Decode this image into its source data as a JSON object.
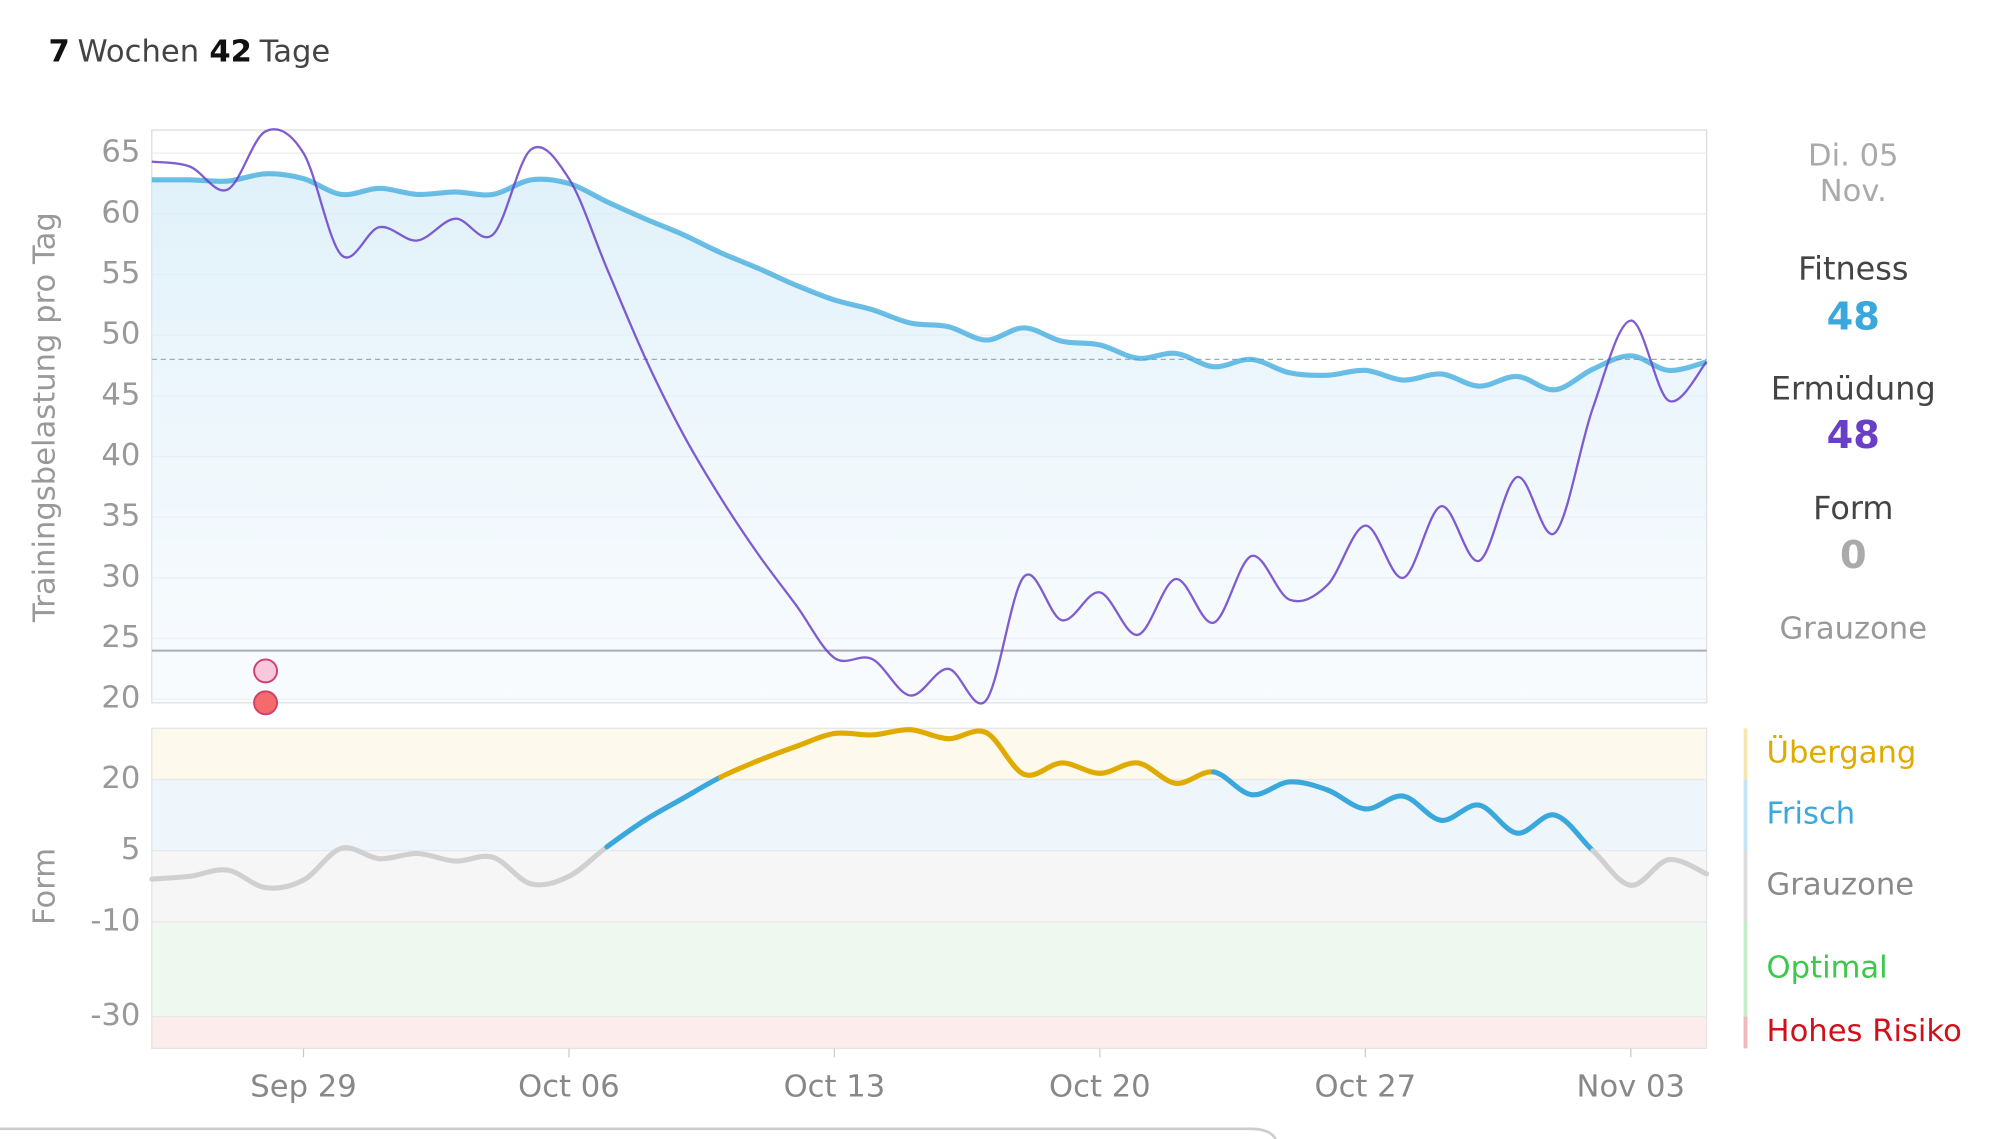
{
  "header": {
    "weeks": 7,
    "weeks_label": "Wochen",
    "days": 42,
    "days_label": "Tage"
  },
  "summary": {
    "date": [
      "Di. 05",
      "Nov."
    ],
    "fitness": 48,
    "fatigue": 48,
    "form": 0,
    "zone": "Grauzone"
  },
  "chart_data": [
    {
      "type": "line",
      "y_label": "Trainingsbelastung pro Tag",
      "x": [
        "Sep 25",
        "Sep 26",
        "Sep 27",
        "Sep 28",
        "Sep 29",
        "Sep 30",
        "Oct 01",
        "Oct 02",
        "Oct 03",
        "Oct 04",
        "Oct 05",
        "Oct 06",
        "Oct 07",
        "Oct 08",
        "Oct 09",
        "Oct 10",
        "Oct 11",
        "Oct 12",
        "Oct 13",
        "Oct 14",
        "Oct 15",
        "Oct 16",
        "Oct 17",
        "Oct 18",
        "Oct 19",
        "Oct 20",
        "Oct 21",
        "Oct 22",
        "Oct 23",
        "Oct 24",
        "Oct 25",
        "Oct 26",
        "Oct 27",
        "Oct 28",
        "Oct 29",
        "Oct 30",
        "Oct 31",
        "Nov 01",
        "Nov 02",
        "Nov 03",
        "Nov 04",
        "Nov 05"
      ],
      "ylim": [
        19.7,
        66.9
      ],
      "yticks": [
        20,
        25,
        30,
        35,
        40,
        45,
        50,
        55,
        60,
        65
      ],
      "grid": true,
      "series": [
        {
          "name": "Fitness",
          "color": "#3aa8dc",
          "fill": true,
          "values": [
            62.8,
            62.8,
            62.7,
            63.3,
            62.9,
            61.6,
            62.1,
            61.6,
            61.8,
            61.6,
            62.8,
            62.5,
            61.0,
            59.6,
            58.3,
            56.8,
            55.5,
            54.1,
            52.9,
            52.1,
            51.0,
            50.7,
            49.6,
            50.6,
            49.5,
            49.2,
            48.1,
            48.5,
            47.4,
            48.0,
            46.9,
            46.7,
            47.1,
            46.3,
            46.8,
            45.8,
            46.6,
            45.5,
            47.2,
            48.3,
            47.1,
            47.8
          ]
        },
        {
          "name": "Ermüdung",
          "color": "#6a3fc8",
          "fill": false,
          "values": [
            64.3,
            63.9,
            62.0,
            66.8,
            65.0,
            56.6,
            58.9,
            57.8,
            59.6,
            58.3,
            65.3,
            62.9,
            55.5,
            48.2,
            41.9,
            36.6,
            31.9,
            27.7,
            23.4,
            23.3,
            20.3,
            22.5,
            19.9,
            30.1,
            26.5,
            28.8,
            25.3,
            29.9,
            26.3,
            31.8,
            28.2,
            29.4,
            34.3,
            30.0,
            35.9,
            31.4,
            38.3,
            33.7,
            44.0,
            51.2,
            44.6,
            47.8
          ]
        }
      ],
      "hlines": [
        {
          "value": 48,
          "style": "dashed"
        },
        {
          "value": 24,
          "style": "solid"
        }
      ],
      "markers": [
        {
          "x": "Sep 28",
          "color": "#f7c8dc"
        },
        {
          "x": "Sep 28",
          "color": "#f56b6b"
        }
      ]
    },
    {
      "type": "zone-line",
      "y_label": "Form",
      "x": [
        "Sep 25",
        "Sep 26",
        "Sep 27",
        "Sep 28",
        "Sep 29",
        "Sep 30",
        "Oct 01",
        "Oct 02",
        "Oct 03",
        "Oct 04",
        "Oct 05",
        "Oct 06",
        "Oct 07",
        "Oct 08",
        "Oct 09",
        "Oct 10",
        "Oct 11",
        "Oct 12",
        "Oct 13",
        "Oct 14",
        "Oct 15",
        "Oct 16",
        "Oct 17",
        "Oct 18",
        "Oct 19",
        "Oct 20",
        "Oct 21",
        "Oct 22",
        "Oct 23",
        "Oct 24",
        "Oct 25",
        "Oct 26",
        "Oct 27",
        "Oct 28",
        "Oct 29",
        "Oct 30",
        "Oct 31",
        "Nov 01",
        "Nov 02",
        "Nov 03",
        "Nov 04",
        "Nov 05"
      ],
      "xticks": [
        "Sep 29",
        "Oct 06",
        "Oct 13",
        "Oct 20",
        "Oct 27",
        "Nov 03"
      ],
      "ylim": [
        -36.7,
        30.8
      ],
      "yticks": [
        20,
        5,
        -10,
        -30
      ],
      "zones": [
        {
          "name": "Übergang",
          "from": 20,
          "color": "#e0ab00",
          "bg": "#fdf9ec"
        },
        {
          "name": "Frisch",
          "from": 5,
          "color": "#3aa8dc",
          "bg": "#eef6fb"
        },
        {
          "name": "Grauzone",
          "from": -10,
          "color": "#8a8a8a",
          "bg": "#f6f6f6"
        },
        {
          "name": "Optimal",
          "from": -30,
          "color": "#3cc84a",
          "bg": "#eef8ef"
        },
        {
          "name": "Hohes Risiko",
          "color": "#d0101a",
          "bg": "#fcecec"
        }
      ],
      "series": [
        {
          "name": "Form",
          "values": [
            -1.0,
            -0.4,
            0.9,
            -2.8,
            -1.2,
            5.5,
            3.3,
            4.4,
            2.8,
            3.6,
            -2.0,
            -0.4,
            5.8,
            11.4,
            16.0,
            20.5,
            24.0,
            27.0,
            29.7,
            29.4,
            30.5,
            28.6,
            29.9,
            21.1,
            23.5,
            21.3,
            23.5,
            19.2,
            21.6,
            16.8,
            19.5,
            17.8,
            13.8,
            16.5,
            11.4,
            14.6,
            8.7,
            12.5,
            5.0,
            -2.3,
            3.1,
            0.1
          ]
        }
      ]
    }
  ]
}
